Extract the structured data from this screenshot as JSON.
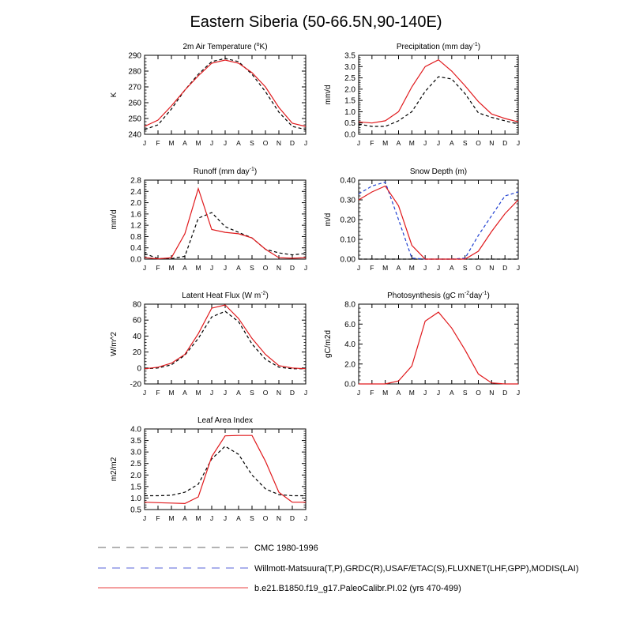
{
  "page_title": "Eastern Siberia (50-66.5N,90-140E)",
  "months": [
    "J",
    "F",
    "M",
    "A",
    "M",
    "J",
    "J",
    "A",
    "S",
    "O",
    "N",
    "D",
    "J"
  ],
  "colors": {
    "obs": "#000000",
    "obs2": "#1f3fd1",
    "model": "#e0191c",
    "legend_gray": "#9a9a9a",
    "legend_blue": "#8f97e6",
    "legend_red": "#f08080"
  },
  "legend": [
    {
      "label": "CMC 1980-1996",
      "style": "gray-dashed"
    },
    {
      "label": "Willmott-Matsuura(T,P),GRDC(R),USAF/ETAC(S),FLUXNET(LHF,GPP),MODIS(LAI)",
      "style": "blue-dashed"
    },
    {
      "label": "b.e21.B1850.f19_g17.PaleoCalibr.PI.02 (yrs 470-499)",
      "style": "red-solid"
    }
  ],
  "chart_data": [
    {
      "type": "line",
      "title_parts": [
        "2m Air Temperature (",
        "o",
        "K)"
      ],
      "ylabel": "K",
      "ylim": [
        240,
        290
      ],
      "yticks": [
        "240",
        "250",
        "260",
        "270",
        "280",
        "290"
      ],
      "yticks_values": [
        240,
        250,
        260,
        270,
        280,
        290
      ],
      "series": [
        {
          "role": "obs",
          "style": "dashed",
          "values": [
            243,
            246,
            256,
            268,
            278,
            286,
            288,
            286,
            278,
            267,
            254,
            245,
            243
          ]
        },
        {
          "role": "model",
          "style": "solid",
          "values": [
            245,
            249,
            258,
            268,
            277,
            285,
            287,
            285,
            279,
            270,
            257,
            247,
            245
          ]
        }
      ]
    },
    {
      "type": "line",
      "title_parts": [
        "Precipitation (mm day",
        "-1",
        ")"
      ],
      "ylabel": "mm/d",
      "ylim": [
        0,
        3.5
      ],
      "yticks": [
        "0.0",
        "0.5",
        "1.0",
        "1.5",
        "2.0",
        "2.5",
        "3.0",
        "3.5"
      ],
      "yticks_values": [
        0,
        0.5,
        1,
        1.5,
        2,
        2.5,
        3,
        3.5
      ],
      "series": [
        {
          "role": "obs",
          "style": "dashed",
          "values": [
            0.45,
            0.35,
            0.35,
            0.6,
            1.0,
            1.9,
            2.55,
            2.45,
            1.8,
            0.95,
            0.75,
            0.6,
            0.45
          ]
        },
        {
          "role": "model",
          "style": "solid",
          "values": [
            0.55,
            0.5,
            0.6,
            1.0,
            2.1,
            3.0,
            3.3,
            2.8,
            2.15,
            1.45,
            0.9,
            0.7,
            0.55
          ]
        }
      ]
    },
    {
      "type": "line",
      "title_parts": [
        "Runoff (mm day",
        "-1",
        ")"
      ],
      "ylabel": "mm/d",
      "ylim": [
        0,
        2.8
      ],
      "yticks": [
        "0.0",
        "0.4",
        "0.8",
        "1.2",
        "1.6",
        "2.0",
        "2.4",
        "2.8"
      ],
      "yticks_values": [
        0,
        0.4,
        0.8,
        1.2,
        1.6,
        2.0,
        2.4,
        2.8
      ],
      "series": [
        {
          "role": "obs",
          "style": "dashed",
          "values": [
            0.2,
            0.02,
            0.02,
            0.1,
            1.45,
            1.65,
            1.15,
            0.95,
            0.75,
            0.35,
            0.22,
            0.15,
            0.2
          ]
        },
        {
          "role": "model",
          "style": "solid",
          "values": [
            0.05,
            0.01,
            0.05,
            0.9,
            2.5,
            1.05,
            0.95,
            0.9,
            0.75,
            0.35,
            0.05,
            0.03,
            0.05
          ]
        }
      ]
    },
    {
      "type": "line",
      "title_parts": [
        "Snow Depth (m)"
      ],
      "ylabel": "m/d",
      "ylim": [
        0,
        0.4
      ],
      "yticks": [
        "0.00",
        "0.10",
        "0.20",
        "0.30",
        "0.40"
      ],
      "yticks_values": [
        0,
        0.1,
        0.2,
        0.3,
        0.4
      ],
      "series": [
        {
          "role": "obs",
          "style": "dashed",
          "values": [
            0,
            0,
            0,
            0,
            0,
            0,
            0,
            0,
            0,
            0,
            0,
            0,
            0
          ]
        },
        {
          "role": "obs2",
          "style": "dashed",
          "values": [
            0.33,
            0.37,
            0.39,
            0.2,
            0.005,
            0,
            0,
            0,
            0.005,
            0.12,
            0.22,
            0.32,
            0.34
          ]
        },
        {
          "role": "model",
          "style": "solid",
          "values": [
            0.3,
            0.34,
            0.37,
            0.27,
            0.07,
            0,
            0,
            0,
            0,
            0.04,
            0.14,
            0.23,
            0.3
          ]
        }
      ]
    },
    {
      "type": "line",
      "title_parts": [
        "Latent Heat Flux (W m",
        "-2",
        ")"
      ],
      "ylabel": "W/m^2",
      "ylim": [
        -20,
        80
      ],
      "yticks": [
        "-20",
        "0",
        "20",
        "40",
        "60",
        "80"
      ],
      "yticks_values": [
        -20,
        0,
        20,
        40,
        60,
        80
      ],
      "series": [
        {
          "role": "obs",
          "style": "dashed",
          "values": [
            -1,
            0,
            4,
            16,
            37,
            64,
            71,
            58,
            30,
            11,
            1,
            -1,
            -1
          ]
        },
        {
          "role": "model",
          "style": "solid",
          "values": [
            -1,
            1,
            6,
            17,
            43,
            75,
            79,
            62,
            37,
            17,
            3,
            0,
            -1
          ]
        }
      ]
    },
    {
      "type": "line",
      "title_parts": [
        "Photosynthesis (gC m",
        "-2",
        "day",
        "-1",
        ")"
      ],
      "ylabel": "gC/m2d",
      "ylim": [
        0,
        8
      ],
      "yticks": [
        "0.0",
        "2.0",
        "4.0",
        "6.0",
        "8.0"
      ],
      "yticks_values": [
        0,
        2,
        4,
        6,
        8
      ],
      "series": [
        {
          "role": "model",
          "style": "solid",
          "values": [
            0,
            0,
            0,
            0.3,
            1.8,
            6.3,
            7.2,
            5.6,
            3.4,
            1.0,
            0.1,
            0,
            0
          ]
        }
      ]
    },
    {
      "type": "line",
      "title_parts": [
        "Leaf Area Index"
      ],
      "ylabel": "m2/m2",
      "ylim": [
        0.5,
        4.0
      ],
      "yticks": [
        "0.5",
        "1.0",
        "1.5",
        "2.0",
        "2.5",
        "3.0",
        "3.5",
        "4.0"
      ],
      "yticks_values": [
        0.5,
        1,
        1.5,
        2,
        2.5,
        3,
        3.5,
        4
      ],
      "series": [
        {
          "role": "obs",
          "style": "dashed",
          "values": [
            1.1,
            1.1,
            1.12,
            1.25,
            1.6,
            2.7,
            3.25,
            2.9,
            2.0,
            1.4,
            1.15,
            1.1,
            1.1
          ]
        },
        {
          "role": "model",
          "style": "solid",
          "values": [
            0.82,
            0.8,
            0.78,
            0.76,
            1.05,
            2.8,
            3.7,
            3.72,
            3.72,
            2.6,
            1.25,
            0.82,
            0.82
          ]
        }
      ]
    }
  ]
}
